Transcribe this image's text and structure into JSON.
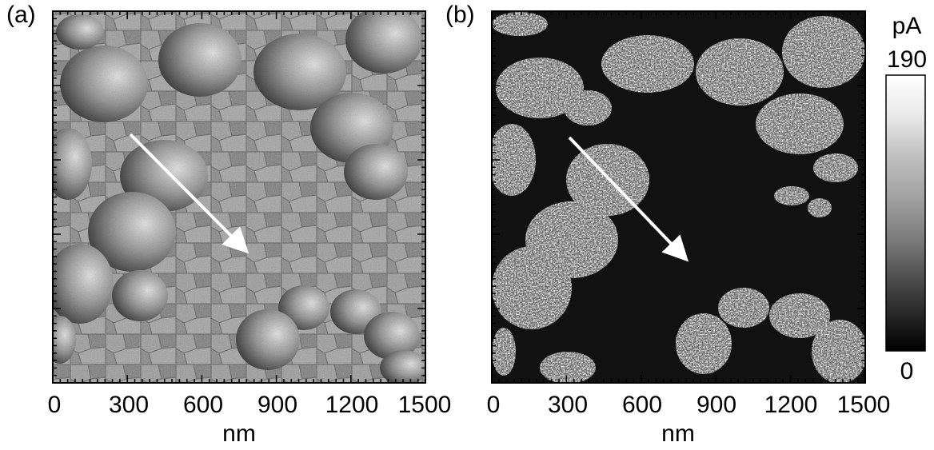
{
  "panels": [
    {
      "label": "(a)",
      "type": "topography"
    },
    {
      "label": "(b)",
      "type": "current"
    }
  ],
  "axis": {
    "xlabel": "nm",
    "ticks": [
      "0",
      "300",
      "600",
      "900",
      "1200",
      "1500"
    ]
  },
  "colorbar": {
    "unit": "pA",
    "max": "190",
    "min": "0"
  },
  "colors": {
    "background": "#ffffff",
    "arrow": "#ffffff"
  }
}
